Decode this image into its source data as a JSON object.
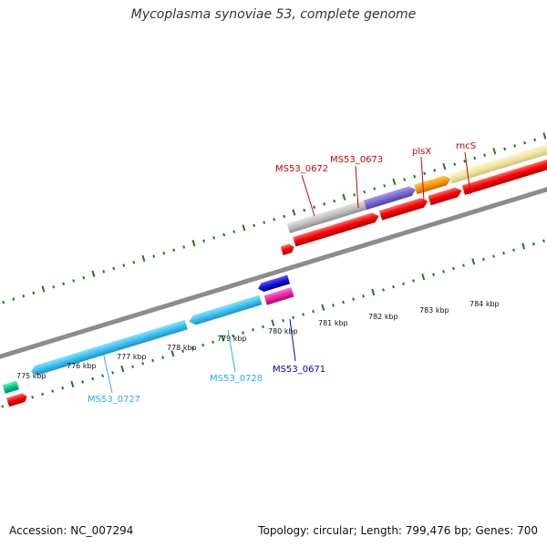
{
  "title": "Mycoplasma synoviae 53, complete genome",
  "footer": {
    "accession": "Accession: NC_007294",
    "summary": "Topology: circular; Length: 799,476 bp; Genes: 700"
  },
  "scale_labels": [
    "775 kbp",
    "776 kbp",
    "777 kbp",
    "778 kbp",
    "779 kbp",
    "780 kbp",
    "781 kbp",
    "782 kbp",
    "783 kbp",
    "784 kbp"
  ],
  "gene_labels": {
    "ms53_0672": "MS53_0672",
    "ms53_0673": "MS53_0673",
    "plsx": "plsX",
    "rncs": "rncS",
    "ms53_0727": "MS53_0727",
    "ms53_0728": "MS53_0728",
    "ms53_0671": "MS53_0671"
  },
  "colors": {
    "backbone": "#8c8c8c",
    "tick": "#1b7a1b",
    "red_gene": "#ff0000",
    "cyan_gene": "#39c2f2",
    "blue_gene": "#1111dd",
    "magenta_gene": "#ee22aa",
    "gray_gene": "#c0c0c0",
    "purple_gene": "#7a6ad0",
    "orange_gene": "#ff9900",
    "khaki_gene": "#f0e6a0",
    "green_gene": "#00cc88",
    "label_red": "#cc0000",
    "label_cyan": "#2bb0de",
    "label_blue": "#0000cc"
  }
}
